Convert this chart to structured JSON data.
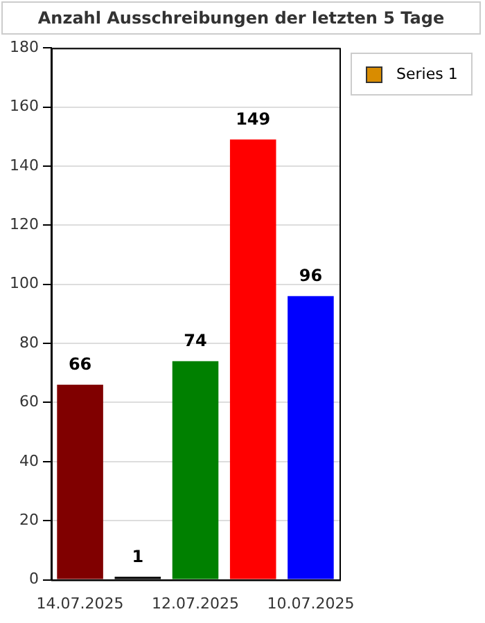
{
  "chart_data": {
    "type": "bar",
    "title": "Anzahl Ausschreibungen der letzten 5 Tage",
    "categories": [
      "14.07.2025",
      null,
      "12.07.2025",
      null,
      "10.07.2025"
    ],
    "series": [
      {
        "name": "Series 1",
        "color": "#d98c00",
        "colors": [
          "#800000",
          "#000000",
          "#008000",
          "#ff0000",
          "#0000ff"
        ],
        "values": [
          66,
          1,
          74,
          149,
          96
        ]
      }
    ],
    "ylim": [
      0,
      180
    ],
    "yticks": [
      0,
      20,
      40,
      60,
      80,
      100,
      120,
      140,
      160,
      180
    ],
    "grid": "y",
    "legend": "top right",
    "data_labels": true
  }
}
